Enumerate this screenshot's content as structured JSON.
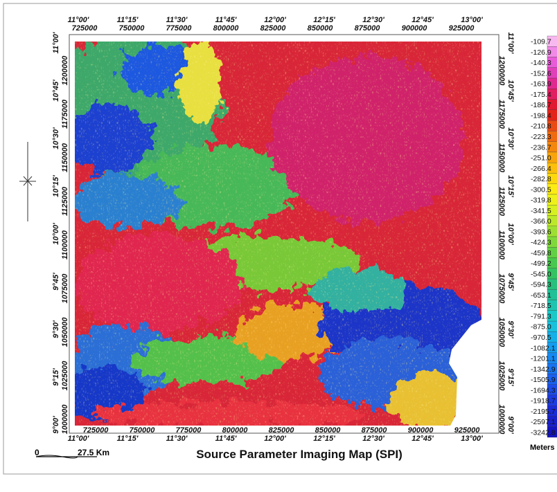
{
  "map": {
    "title": "Source Parameter Imaging Map (SPI)",
    "scale_bar": {
      "start": "0",
      "end": "27.5 Km"
    },
    "eastings": [
      "725000",
      "750000",
      "775000",
      "800000",
      "825000",
      "850000",
      "875000",
      "900000",
      "925000"
    ],
    "longitudes": [
      "11°00'",
      "11°15'",
      "11°30'",
      "11°45'",
      "12°00'",
      "12°15'",
      "12°30'",
      "12°45'",
      "13°00'"
    ],
    "northings": [
      "1200000",
      "1175000",
      "1150000",
      "1125000",
      "1100000",
      "1075000",
      "1050000",
      "1025000",
      "1000000"
    ],
    "latitudes": [
      "11°00'",
      "10°45'",
      "10°30'",
      "10°15'",
      "10°00'",
      "9°45'",
      "9°30'",
      "9°15'",
      "9°00'"
    ],
    "legend": {
      "unit": "Meters",
      "labels": [
        "-109.7",
        "-126.9",
        "-140.3",
        "-152.6",
        "-163.9",
        "-175.4",
        "-186.7",
        "-198.4",
        "-210.8",
        "-223.3",
        "-236.7",
        "-251.0",
        "-266.4",
        "-282.8",
        "-300.5",
        "-319.8",
        "-341.5",
        "-366.0",
        "-393.6",
        "-424.3",
        "-459.8",
        "-499.2",
        "-545.0",
        "-594.3",
        "-653.1",
        "-718.5",
        "-791.3",
        "-875.0",
        "-970.5",
        "-1082.1",
        "-1201.1",
        "-1342.9",
        "-1505.9",
        "-1694.3",
        "-1918.7",
        "-2195.7",
        "-2597.1",
        "-3242.8"
      ],
      "colors": [
        "#f7b8f0",
        "#f08ae6",
        "#e85cd8",
        "#e040b8",
        "#e02890",
        "#e01e60",
        "#e01a30",
        "#e42418",
        "#ea4a14",
        "#f06a10",
        "#f4880e",
        "#f8a40c",
        "#fbbf0c",
        "#fdd80e",
        "#fcec14",
        "#eef21a",
        "#d6f020",
        "#bce82a",
        "#9ee032",
        "#80d83a",
        "#62d044",
        "#48c84e",
        "#34c262",
        "#28c07c",
        "#22c096",
        "#1ec4b0",
        "#1ac8c8",
        "#18c0dc",
        "#16b0e8",
        "#169cee",
        "#1688f0",
        "#1874f0",
        "#1a60ee",
        "#1c4ce8",
        "#1c3ae0",
        "#1a2ad6",
        "#1820cc",
        "#1414c0"
      ]
    }
  }
}
